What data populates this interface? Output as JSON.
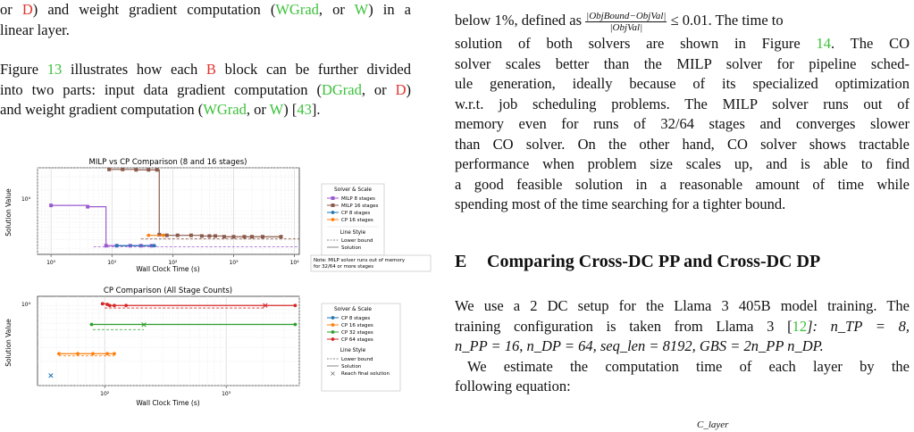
{
  "left_column": {
    "para0": {
      "or": "or ",
      "d1": "D",
      "and_weight": ") and weight gradient computation (",
      "wgrad": "WGrad",
      "or2": ", or ",
      "w": "W",
      "in_a": ") in a",
      "line2": "linear layer."
    },
    "para1": {
      "fig_ref_pre": "Figure ",
      "fig_num": "13",
      "text1": " illustrates how each ",
      "b": "B",
      "text2": " block can be further divided",
      "line2a": "into two parts: input data gradient computation (",
      "dgrad": "DGrad",
      "or": ", or ",
      "d": "D",
      "close": ")",
      "line3a": "and weight gradient computation (",
      "wgrad": "WGrad",
      "or2": ", or ",
      "w": "W",
      "end": ") [",
      "cite": "43",
      "end2": "]."
    }
  },
  "right_column": {
    "line1_pre": "below 1%, defined as ",
    "frac_top": "|ObjBound−ObjVal|",
    "frac_bot": "|ObjVal|",
    "line1_post": " ≤ 0.01. The time to",
    "line2_pre": "solution of both solvers are shown in Figure ",
    "fig_num": "14",
    "line2_post": ". The CO",
    "lines": [
      "solver scales better than the MILP solver for pipeline sched-",
      "ule generation, ideally because of its specialized optimization",
      "w.r.t. job scheduling problems. The MILP solver runs out of",
      "memory even for runs of 32/64 stages and converges slower",
      "than CO solver. On the other hand, CO solver shows tractable",
      "performance when problem size scales up, and is able to find",
      "a good feasible solution in a reasonable amount of time while",
      "spending most of the time searching for a tighter bound."
    ],
    "section_num": "E",
    "section_title": "Comparing Cross-DC PP and Cross-DC DP",
    "sec_p1_l1": "We use a 2 DC setup for the Llama 3 405B model training. The",
    "sec_p1_l2_pre": "training configuration is taken from Llama 3 [",
    "sec_p1_cite": "12",
    "sec_p1_l2_post": "]: n_TP = 8,",
    "sec_p1_l3": "n_PP = 16, n_DP = 64, seq_len = 8192, GBS = 2n_PP n_DP.",
    "sec_p2_l1": "We estimate the computation time of each layer by the",
    "sec_p2_l2": "following equation:",
    "eq_fragment": "C_layer"
  },
  "figure_top": {
    "title": "MILP vs CP Comparison (8 and 16 stages)",
    "xlabel": "Wall Clock Time (s)",
    "ylabel": "Solution Value",
    "xticks": [
      "10⁰",
      "10¹",
      "10²",
      "10³",
      "10⁴"
    ],
    "ytick": "10⁴",
    "legend": {
      "solver_title": "Solver & Scale",
      "solver_items": [
        "MILP 8 stages",
        "MILP 16 stages",
        "CP 8 stages",
        "CP 16 stages"
      ],
      "style_title": "Line Style",
      "style_items": [
        "Lower bound",
        "Solution"
      ]
    },
    "note": [
      "Note: MILP solver runs out of memory",
      "for 32/64 or more stages"
    ]
  },
  "figure_bottom": {
    "title": "CP Comparison (All Stage Counts)",
    "xlabel": "Wall Clock Time (s)",
    "ylabel": "Solution Value",
    "xticks": [
      "10²",
      "10³"
    ],
    "ytick": "10⁴",
    "legend": {
      "solver_title": "Solver & Scale",
      "solver_items": [
        "CP 8 stages",
        "CP 16 stages",
        "CP 32 stages",
        "CP 64 stages"
      ],
      "style_title": "Line Style",
      "style_items": [
        "Lower bound",
        "Solution",
        "Reach final solution"
      ]
    }
  },
  "colors": {
    "milp8": "#9b59d0",
    "milp16": "#8b5a4a",
    "cp8": "#1f77b4",
    "cp16": "#ff7f0e",
    "cp32": "#2ca02c",
    "cp64": "#d62728",
    "link_red": "#e3342f",
    "link_green": "#3cc13b"
  },
  "chart_data": [
    {
      "type": "line",
      "title": "MILP vs CP Comparison (8 and 16 stages)",
      "xlabel": "Wall Clock Time (s)",
      "ylabel": "Solution Value",
      "xscale": "log",
      "yscale": "log",
      "xlim": [
        0.6,
        12000
      ],
      "ylim": [
        2500,
        40000
      ],
      "grid": true,
      "legend": "right-outside",
      "series": [
        {
          "name": "MILP 8 stages",
          "kind": "solution",
          "x": [
            1,
            4,
            8,
            12,
            20,
            30,
            45
          ],
          "y": [
            12000,
            11500,
            3300,
            3300,
            3300,
            3300,
            3300
          ]
        },
        {
          "name": "MILP 16 stages",
          "kind": "solution",
          "x": [
            9,
            15,
            25,
            40,
            55,
            60,
            80,
            120,
            200,
            300,
            400,
            500,
            700,
            1000,
            1500,
            2000,
            3000,
            6000
          ],
          "y": [
            38000,
            38000,
            37500,
            37500,
            37500,
            4700,
            4600,
            4600,
            4600,
            4500,
            4500,
            4500,
            4400,
            4400,
            4400,
            4400,
            4400,
            4400
          ]
        },
        {
          "name": "MILP 16 stages",
          "kind": "lower bound",
          "x": [
            30,
            12000
          ],
          "y": [
            4100,
            4100
          ]
        },
        {
          "name": "MILP 8 stages",
          "kind": "lower bound",
          "x": [
            5,
            12000
          ],
          "y": [
            3200,
            3200
          ]
        },
        {
          "name": "CP 8 stages",
          "kind": "solution",
          "x": [
            12,
            50
          ],
          "y": [
            3300,
            3300
          ]
        },
        {
          "name": "CP 16 stages",
          "kind": "solution",
          "x": [
            40,
            70
          ],
          "y": [
            4600,
            4600
          ]
        }
      ]
    },
    {
      "type": "line",
      "title": "CP Comparison (All Stage Counts)",
      "xlabel": "Wall Clock Time (s)",
      "ylabel": "Solution Value",
      "xscale": "log",
      "yscale": "log",
      "xlim": [
        28,
        4000
      ],
      "ylim": [
        1000,
        13000
      ],
      "grid": true,
      "legend": "right-outside",
      "series": [
        {
          "name": "CP 8 stages",
          "kind": "solution",
          "x": [
            36
          ],
          "y": [
            1350
          ],
          "final": true
        },
        {
          "name": "CP 16 stages",
          "kind": "solution",
          "x": [
            42,
            60,
            80,
            105,
            120
          ],
          "y": [
            2500,
            2500,
            2500,
            2500,
            2500
          ]
        },
        {
          "name": "CP 16 stages",
          "kind": "lower bound",
          "x": [
            42,
            120
          ],
          "y": [
            2350,
            2350
          ]
        },
        {
          "name": "CP 32 stages",
          "kind": "solution",
          "x": [
            78,
            210,
            3700
          ],
          "y": [
            5800,
            5800,
            5800
          ],
          "final_at": 210
        },
        {
          "name": "CP 32 stages",
          "kind": "lower bound",
          "x": [
            80,
            210
          ],
          "y": [
            5000,
            5000
          ]
        },
        {
          "name": "CP 64 stages",
          "kind": "solution",
          "x": [
            96,
            105,
            110,
            120,
            150,
            2100,
            3700
          ],
          "y": [
            10500,
            10300,
            10000,
            10000,
            10000,
            10000,
            10000
          ],
          "final_at": 2100
        },
        {
          "name": "CP 64 stages",
          "kind": "lower bound",
          "x": [
            100,
            2100
          ],
          "y": [
            9300,
            9300
          ]
        }
      ]
    }
  ]
}
